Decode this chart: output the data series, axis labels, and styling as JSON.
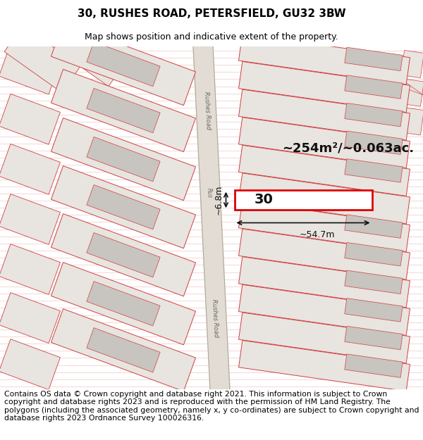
{
  "title": "30, RUSHES ROAD, PETERSFIELD, GU32 3BW",
  "subtitle": "Map shows position and indicative extent of the property.",
  "footer": "Contains OS data © Crown copyright and database right 2021. This information is subject to Crown copyright and database rights 2023 and is reproduced with the permission of HM Land Registry. The polygons (including the associated geometry, namely x, y co-ordinates) are subject to Crown copyright and database rights 2023 Ordnance Survey 100026316.",
  "bg_color": "#ffffff",
  "map_bg": "#f7f4f0",
  "road_color": "#e2dcd4",
  "hatch_line_color": "#e8a0a0",
  "plot_fill": "#e8e4e0",
  "plot_fill2": "#d8d4d0",
  "gray_block_fill": "#c8c4c0",
  "red_edge": "#d04040",
  "dim_color": "#000000",
  "title_fontsize": 11,
  "subtitle_fontsize": 9,
  "footer_fontsize": 7.8,
  "road_label_color": "#666666",
  "area_text": "~254m²/~0.063ac.",
  "width_text": "~54.7m",
  "height_text": "~6.8m",
  "number_text": "30"
}
